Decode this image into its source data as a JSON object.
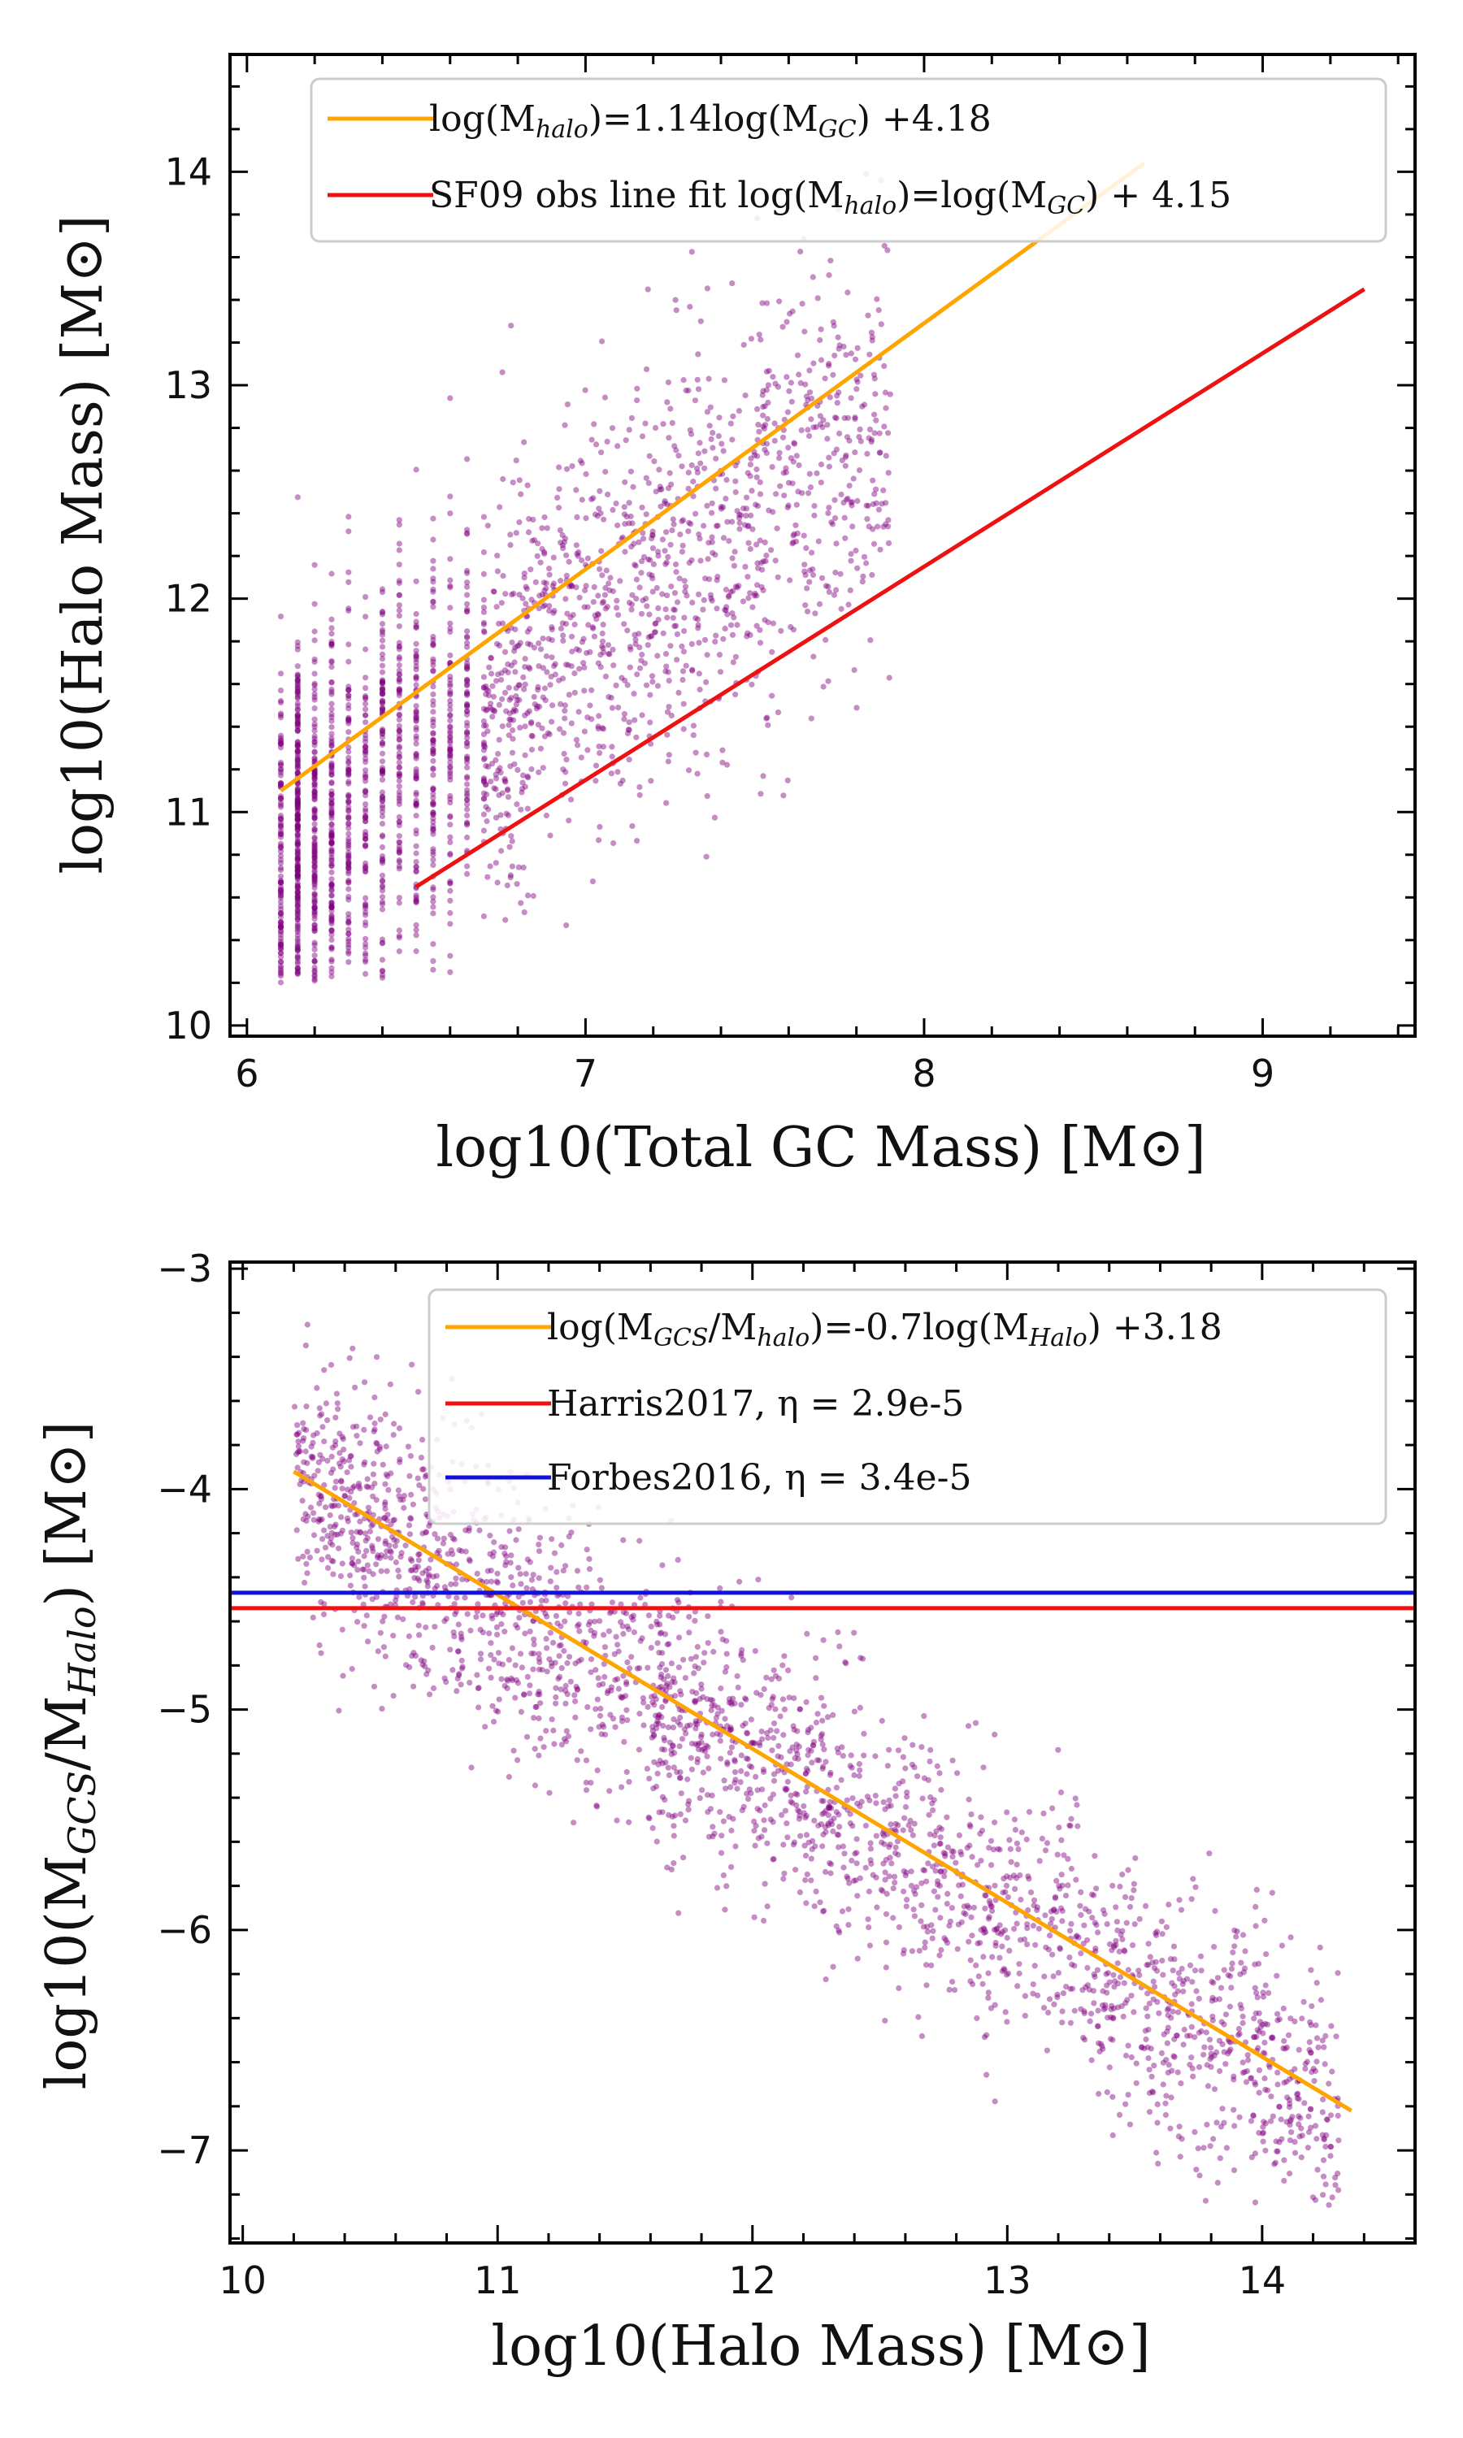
{
  "colors": {
    "scatter": "#800080",
    "fit_line": "#FFA500",
    "red_line": "#EE1111",
    "blue_line": "#1111DD",
    "axes": "#000000"
  },
  "chart_data": [
    {
      "type": "scatter",
      "title": "",
      "xlabel": "log10(Total GC Mass) [M⊙]",
      "ylabel": "log10(Halo Mass) [M⊙]",
      "xlim": [
        5.95,
        9.45
      ],
      "ylim": [
        9.95,
        14.55
      ],
      "xticks": [
        6,
        7,
        8,
        9
      ],
      "yticks": [
        10,
        11,
        12,
        13,
        14
      ],
      "xtick_labels": [
        "6",
        "7",
        "8",
        "9"
      ],
      "ytick_labels": [
        "10",
        "11",
        "12",
        "13",
        "14"
      ],
      "grid": false,
      "legend_position": "top",
      "scatter_cloud": {
        "name": "",
        "x_range": [
          6.1,
          7.9
        ],
        "y_range": [
          10.2,
          14.1
        ],
        "approx_center": [
          6.7,
          11.7
        ],
        "trend_slope": 1.14,
        "trend_intercept": 4.18
      },
      "series": [
        {
          "name": "log(M_halo)=1.14log(M_GC) +4.18",
          "legend_main": "log(M",
          "legend_sub1": "halo",
          "legend_mid": ")=1.14log(M",
          "legend_sub2": "GC",
          "legend_end": ") +4.18",
          "type": "line",
          "color": "#FFA500",
          "x": [
            6.1,
            8.65
          ],
          "y": [
            11.1,
            14.04
          ]
        },
        {
          "name": "SF09 obs line fit log(M_halo)=log(M_GC) + 4.15",
          "legend_main": "SF09 obs line fit log(M",
          "legend_sub1": "halo",
          "legend_mid": ")=log(M",
          "legend_sub2": "GC",
          "legend_end": ") + 4.15",
          "type": "line",
          "color": "#EE1111",
          "x": [
            6.5,
            9.3
          ],
          "y": [
            10.65,
            13.45
          ]
        }
      ]
    },
    {
      "type": "scatter",
      "title": "",
      "xlabel": "log10(Halo Mass) [M⊙]",
      "ylabel": "log10(M_GCS/M_Halo) [M⊙]",
      "ylabel_main": "log10(M",
      "ylabel_sub1": "GCS",
      "ylabel_mid": "/M",
      "ylabel_sub2": "Halo",
      "ylabel_end": ") [M⊙]",
      "xlim": [
        9.95,
        14.6
      ],
      "ylim": [
        -7.42,
        -2.97
      ],
      "xticks": [
        10,
        11,
        12,
        13,
        14
      ],
      "yticks": [
        -3,
        -4,
        -5,
        -6,
        -7
      ],
      "xtick_labels": [
        "10",
        "11",
        "12",
        "13",
        "14"
      ],
      "ytick_labels": [
        "−3",
        "−4",
        "−5",
        "−6",
        "−7"
      ],
      "grid": false,
      "legend_position": "top-right",
      "scatter_cloud": {
        "name": "",
        "x_range": [
          10.2,
          14.3
        ],
        "y_range": [
          -7.2,
          -3.2
        ],
        "approx_center": [
          11.8,
          -5.0
        ],
        "trend_slope": -0.7,
        "trend_intercept": 3.18
      },
      "series": [
        {
          "name": "log(M_GCS/M_halo)=-0.7log(M_Halo) +3.18",
          "legend_main": "log(M",
          "legend_sub1": "GCS",
          "legend_mid": "/M",
          "legend_sub2": "halo",
          "legend_mid2": ")=-0.7log(M",
          "legend_sub3": "Halo",
          "legend_end": ") +3.18",
          "type": "line",
          "color": "#FFA500",
          "x": [
            10.2,
            14.35
          ],
          "y": [
            -3.92,
            -6.82
          ]
        },
        {
          "name": "Harris2017, η = 2.9e-5",
          "type": "hline",
          "color": "#EE1111",
          "y": -4.54
        },
        {
          "name": "Forbes2016, η = 3.4e-5",
          "type": "hline",
          "color": "#1111DD",
          "y": -4.47
        }
      ]
    }
  ]
}
